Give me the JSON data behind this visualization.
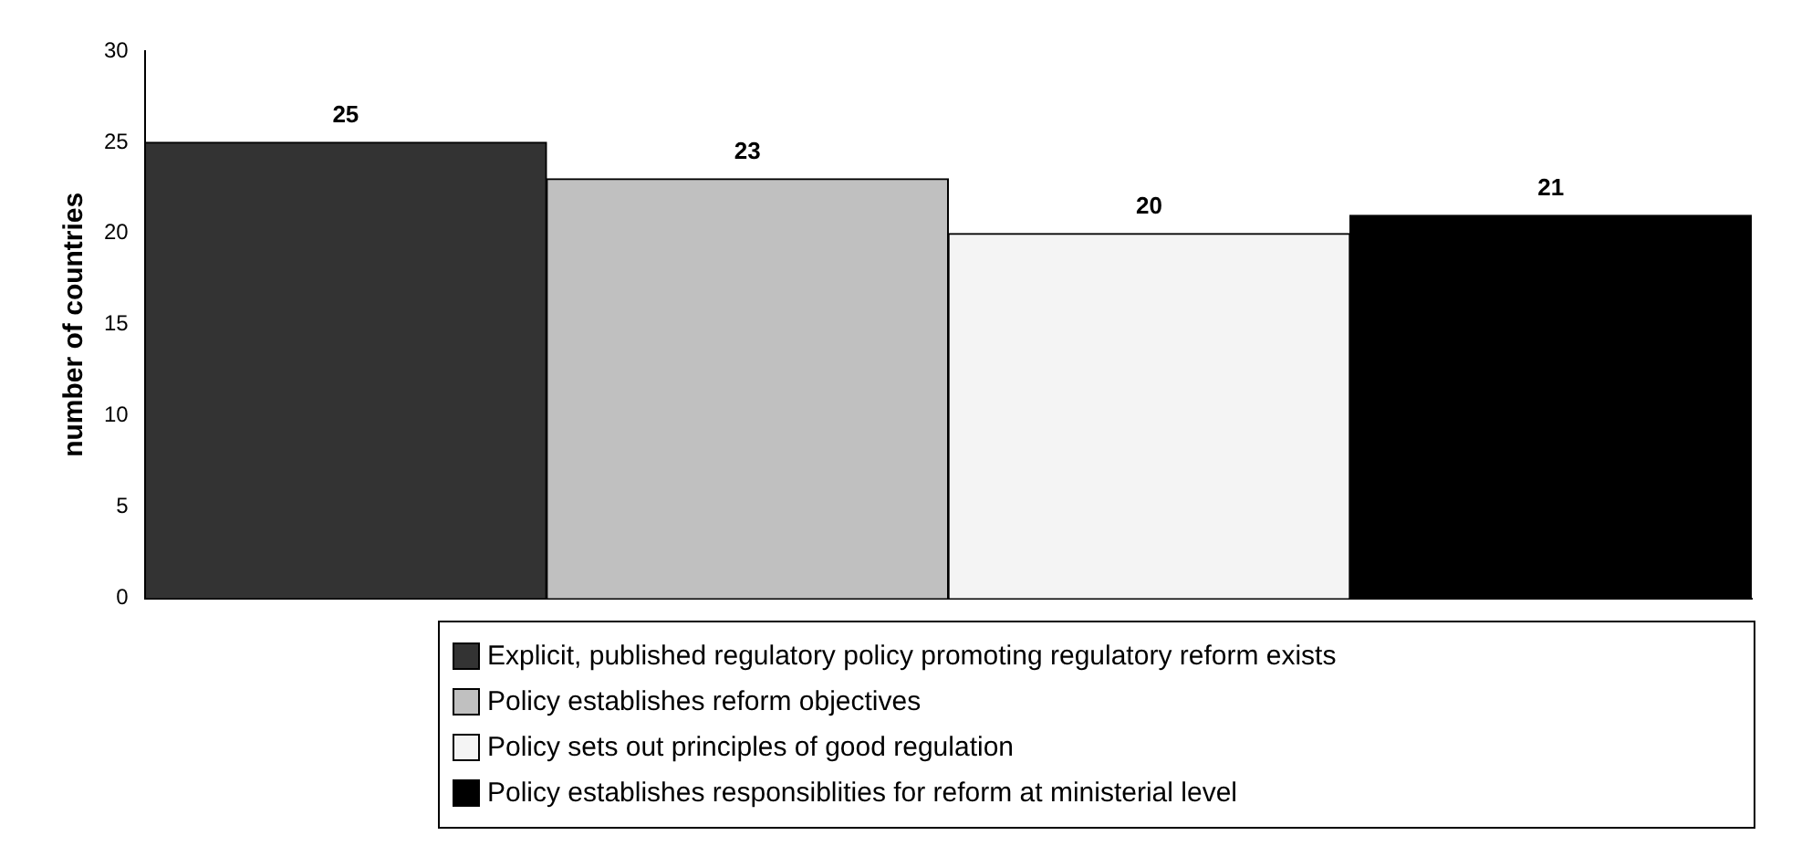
{
  "chart_data": {
    "type": "bar",
    "ylabel": "number of countries",
    "categories": [
      null
    ],
    "series": [
      {
        "name": "Explicit, published regulatory policy promoting regulatory reform exists",
        "color": "#333333",
        "values": [
          25
        ]
      },
      {
        "name": "Policy establishes reform objectives",
        "color": "#c0c0c0",
        "values": [
          23
        ]
      },
      {
        "name": "Policy sets out principles of good regulation",
        "color": "#f4f4f4",
        "values": [
          20
        ]
      },
      {
        "name": "Policy establishes responsiblities for reform at ministerial level",
        "color": "#000000",
        "values": [
          21
        ]
      }
    ],
    "ylim": [
      0,
      30
    ],
    "yticks": [
      0,
      5,
      10,
      15,
      20,
      25,
      30
    ],
    "grid": false,
    "legend": "bottom",
    "data_labels": true
  }
}
